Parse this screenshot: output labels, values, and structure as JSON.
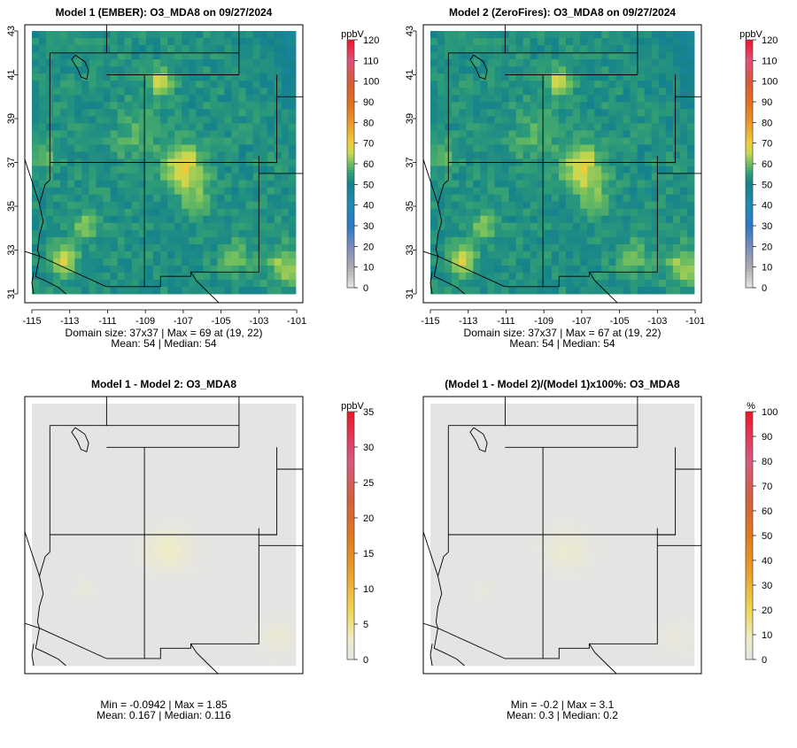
{
  "panels": [
    {
      "id": "model1",
      "title": "Model 1 (EMBER): O3_MDA8 on 09/27/2024",
      "legend_unit": "ppbV",
      "legend_ticks": [
        "0",
        "10",
        "20",
        "30",
        "40",
        "50",
        "60",
        "70",
        "80",
        "90",
        "100",
        "110",
        "120"
      ],
      "legend_range": [
        0,
        120
      ],
      "palette": "ozone",
      "x_ticks": [
        "-115",
        "-113",
        "-111",
        "-109",
        "-107",
        "-105",
        "-103",
        "-101"
      ],
      "y_ticks": [
        "31",
        "33",
        "35",
        "37",
        "39",
        "41",
        "43"
      ],
      "caption_line1": "Domain size: 37x37 | Max = 69 at (19, 22)",
      "caption_line2": "Mean: 54 |  Median: 54",
      "field": "ozone"
    },
    {
      "id": "model2",
      "title": "Model 2 (ZeroFires): O3_MDA8 on 09/27/2024",
      "legend_unit": "ppbV",
      "legend_ticks": [
        "0",
        "10",
        "20",
        "30",
        "40",
        "50",
        "60",
        "70",
        "80",
        "90",
        "100",
        "110",
        "120"
      ],
      "legend_range": [
        0,
        120
      ],
      "palette": "ozone",
      "x_ticks": [
        "-115",
        "-113",
        "-111",
        "-109",
        "-107",
        "-105",
        "-103",
        "-101"
      ],
      "y_ticks": [
        "31",
        "33",
        "35",
        "37",
        "39",
        "41",
        "43"
      ],
      "caption_line1": "Domain size: 37x37 | Max = 67 at (19, 22)",
      "caption_line2": "Mean: 54 |  Median: 54",
      "field": "ozone"
    },
    {
      "id": "diff",
      "title": "Model 1 - Model 2: O3_MDA8",
      "legend_unit": "ppbV",
      "legend_ticks": [
        "0",
        "5",
        "10",
        "15",
        "20",
        "25",
        "30",
        "35"
      ],
      "legend_range": [
        0,
        35
      ],
      "palette": "diff",
      "x_ticks": [],
      "y_ticks": [],
      "caption_line1": "Min = -0.0942 | Max = 1.85",
      "caption_line2": "Mean: 0.167 |  Median: 0.116",
      "field": "diff"
    },
    {
      "id": "pctdiff",
      "title": "(Model 1 - Model 2)/(Model 1)x100%: O3_MDA8",
      "legend_unit": "%",
      "legend_ticks": [
        "0",
        "10",
        "20",
        "30",
        "40",
        "50",
        "60",
        "70",
        "80",
        "90",
        "100"
      ],
      "legend_range": [
        0,
        100
      ],
      "palette": "diff",
      "x_ticks": [],
      "y_ticks": [],
      "caption_line1": "Min = -0.2 | Max = 3.1",
      "caption_line2": "Mean: 0.3 |  Median: 0.2",
      "field": "pctdiff"
    }
  ]
}
